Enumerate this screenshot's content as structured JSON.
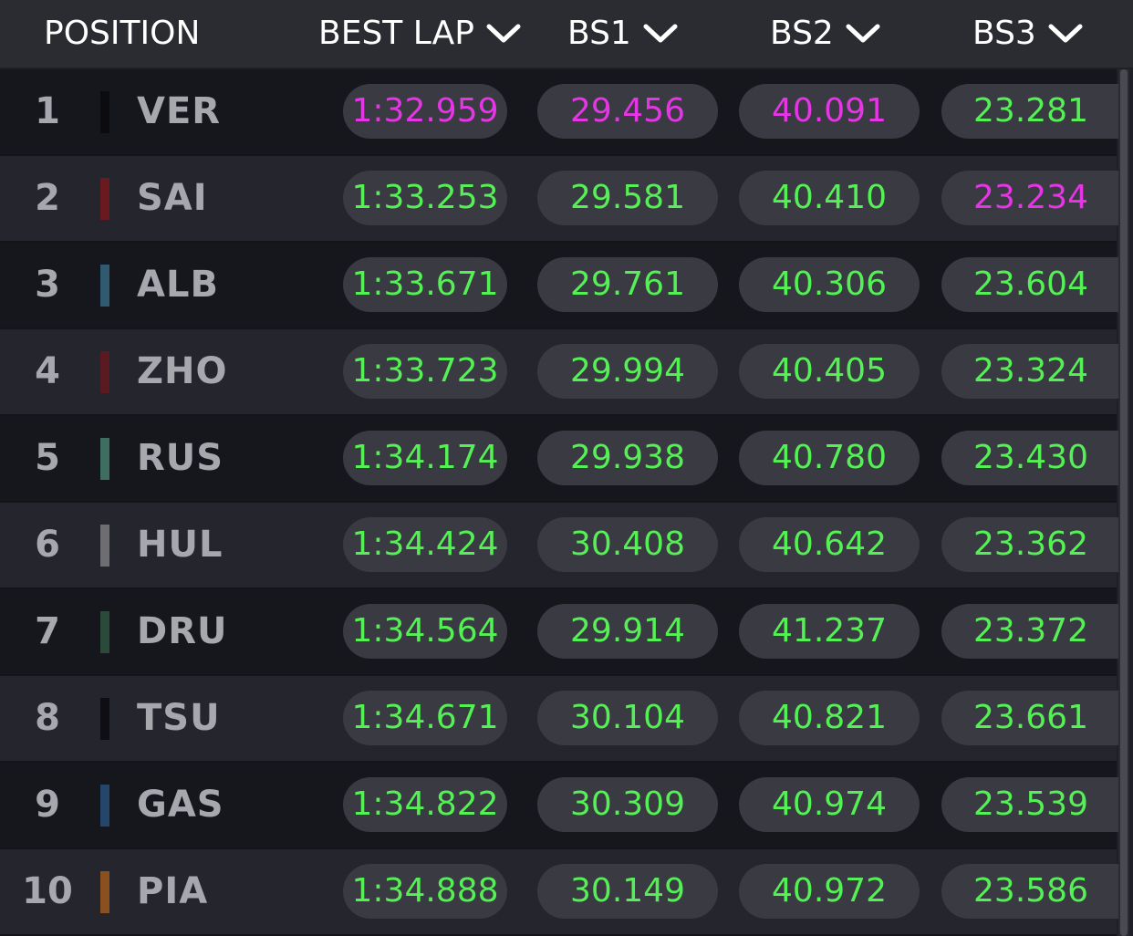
{
  "header": {
    "position": "POSITION",
    "best_lap": "BEST LAP",
    "bs1": "BS1",
    "bs2": "BS2",
    "bs3": "BS3"
  },
  "colors": {
    "fastest": "#e535e5",
    "personal_best": "#55f055"
  },
  "drivers": [
    {
      "pos": "1",
      "code": "VER",
      "team_color": "#0c0c10",
      "best_lap": "1:32.959",
      "bs1": "29.456",
      "bs2": "40.091",
      "bs3": "23.281",
      "fastest": [
        "best_lap",
        "bs1",
        "bs2"
      ]
    },
    {
      "pos": "2",
      "code": "SAI",
      "team_color": "#6a1a1e",
      "best_lap": "1:33.253",
      "bs1": "29.581",
      "bs2": "40.410",
      "bs3": "23.234",
      "fastest": [
        "bs3"
      ]
    },
    {
      "pos": "3",
      "code": "ALB",
      "team_color": "#2f5a70",
      "best_lap": "1:33.671",
      "bs1": "29.761",
      "bs2": "40.306",
      "bs3": "23.604",
      "fastest": []
    },
    {
      "pos": "4",
      "code": "ZHO",
      "team_color": "#5a1a22",
      "best_lap": "1:33.723",
      "bs1": "29.994",
      "bs2": "40.405",
      "bs3": "23.324",
      "fastest": []
    },
    {
      "pos": "5",
      "code": "RUS",
      "team_color": "#3e6e60",
      "best_lap": "1:34.174",
      "bs1": "29.938",
      "bs2": "40.780",
      "bs3": "23.430",
      "fastest": []
    },
    {
      "pos": "6",
      "code": "HUL",
      "team_color": "#6e6e72",
      "best_lap": "1:34.424",
      "bs1": "30.408",
      "bs2": "40.642",
      "bs3": "23.362",
      "fastest": []
    },
    {
      "pos": "7",
      "code": "DRU",
      "team_color": "#2a4a3a",
      "best_lap": "1:34.564",
      "bs1": "29.914",
      "bs2": "41.237",
      "bs3": "23.372",
      "fastest": []
    },
    {
      "pos": "8",
      "code": "TSU",
      "team_color": "#0e0e14",
      "best_lap": "1:34.671",
      "bs1": "30.104",
      "bs2": "40.821",
      "bs3": "23.661",
      "fastest": []
    },
    {
      "pos": "9",
      "code": "GAS",
      "team_color": "#24466a",
      "best_lap": "1:34.822",
      "bs1": "30.309",
      "bs2": "40.974",
      "bs3": "23.539",
      "fastest": []
    },
    {
      "pos": "10",
      "code": "PIA",
      "team_color": "#8a5020",
      "best_lap": "1:34.888",
      "bs1": "30.149",
      "bs2": "40.972",
      "bs3": "23.586",
      "fastest": []
    }
  ]
}
